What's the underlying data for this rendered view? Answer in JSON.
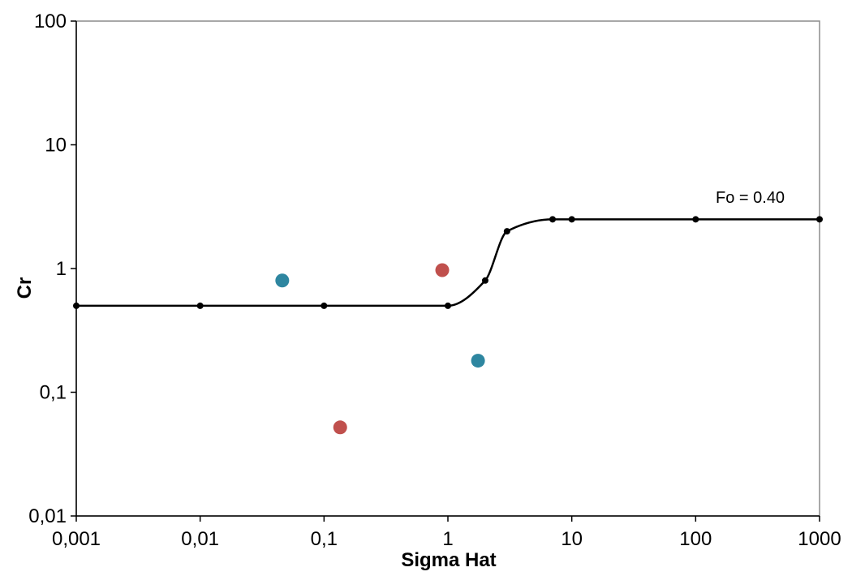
{
  "chart_data": {
    "type": "scatter",
    "title": "",
    "xlabel": "Sigma Hat",
    "ylabel": "Cr",
    "xscale": "log",
    "yscale": "log",
    "xlim": [
      0.001,
      1000
    ],
    "ylim": [
      0.01,
      100
    ],
    "grid": false,
    "legend": "none",
    "x_ticks": [
      "0,001",
      "0,01",
      "0,1",
      "1",
      "10",
      "100",
      "1000"
    ],
    "y_ticks": [
      "0,01",
      "0,1",
      "1",
      "10",
      "100"
    ],
    "annotation": "Fo = 0.40",
    "series": [
      {
        "type": "line",
        "color": "#000000",
        "points": [
          {
            "x": 0.001,
            "y": 0.5
          },
          {
            "x": 0.01,
            "y": 0.5
          },
          {
            "x": 0.1,
            "y": 0.5
          },
          {
            "x": 1,
            "y": 0.5
          },
          {
            "x": 2,
            "y": 0.8
          },
          {
            "x": 3,
            "y": 2.0
          },
          {
            "x": 7,
            "y": 2.5
          },
          {
            "x": 10,
            "y": 2.5
          },
          {
            "x": 100,
            "y": 2.5
          },
          {
            "x": 1000,
            "y": 2.5
          }
        ]
      },
      {
        "type": "scatter",
        "color": "#2e86a0",
        "points": [
          {
            "x": 0.046,
            "y": 0.8
          },
          {
            "x": 1.75,
            "y": 0.18
          }
        ]
      },
      {
        "type": "scatter",
        "color": "#c0504d",
        "points": [
          {
            "x": 0.9,
            "y": 0.97
          },
          {
            "x": 0.135,
            "y": 0.052
          }
        ]
      }
    ]
  }
}
